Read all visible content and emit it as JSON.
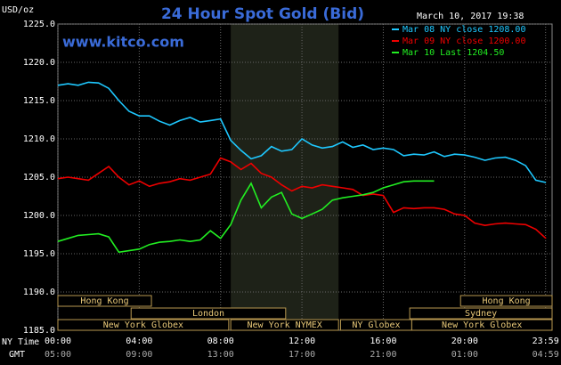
{
  "chart_data": {
    "type": "line",
    "title": "24 Hour Spot Gold (Bid)",
    "site": "www.kitco.com",
    "timestamp": "March 10, 2017 19:38",
    "y_label": "USD/oz",
    "x_row_label": "NY Time",
    "x2_row_label": "GMT",
    "x": [
      0,
      0.5,
      1,
      1.5,
      2,
      2.5,
      3,
      3.5,
      4,
      4.5,
      5,
      5.5,
      6,
      6.5,
      7,
      7.5,
      8,
      8.5,
      9,
      9.5,
      10,
      10.5,
      11,
      11.5,
      12,
      12.5,
      13,
      13.5,
      14,
      14.5,
      15,
      15.5,
      16,
      16.5,
      17,
      17.5,
      18,
      18.5,
      19,
      19.5,
      20,
      20.5,
      21,
      21.5,
      22,
      22.5,
      23,
      23.5,
      24
    ],
    "series": [
      {
        "name": "Mar 08 NY close 1208.00",
        "color": "#1ec8ff",
        "values": [
          1217.0,
          1217.2,
          1217.0,
          1217.4,
          1217.3,
          1216.6,
          1215.0,
          1213.6,
          1213.0,
          1213.0,
          1212.3,
          1211.8,
          1212.4,
          1212.8,
          1212.2,
          1212.4,
          1212.6,
          1209.8,
          1208.5,
          1207.4,
          1207.8,
          1209.0,
          1208.4,
          1208.6,
          1210.0,
          1209.2,
          1208.8,
          1209.0,
          1209.6,
          1208.9,
          1209.2,
          1208.6,
          1208.8,
          1208.6,
          1207.8,
          1208.0,
          1207.9,
          1208.3,
          1207.7,
          1208.0,
          1207.9,
          1207.6,
          1207.2,
          1207.5,
          1207.6,
          1207.2,
          1206.5,
          1204.6,
          1204.3
        ]
      },
      {
        "name": "Mar 09 NY close 1200.00",
        "color": "#ee0000",
        "values": [
          1204.8,
          1205.0,
          1204.8,
          1204.6,
          1205.5,
          1206.4,
          1205.0,
          1204.0,
          1204.5,
          1203.8,
          1204.2,
          1204.4,
          1204.8,
          1204.6,
          1205.0,
          1205.4,
          1207.5,
          1207.0,
          1206.0,
          1206.8,
          1205.5,
          1205.0,
          1204.0,
          1203.2,
          1203.8,
          1203.6,
          1204.0,
          1203.8,
          1203.6,
          1203.4,
          1202.6,
          1202.8,
          1202.6,
          1200.4,
          1201.0,
          1200.9,
          1201.0,
          1201.0,
          1200.8,
          1200.2,
          1200.0,
          1199.0,
          1198.7,
          1198.9,
          1199.0,
          1198.9,
          1198.8,
          1198.2,
          1197.0
        ]
      },
      {
        "name": "Mar 10 Last 1204.50",
        "color": "#22ee22",
        "values": [
          1196.6,
          1197.0,
          1197.4,
          1197.5,
          1197.6,
          1197.2,
          1195.2,
          1195.4,
          1195.6,
          1196.2,
          1196.5,
          1196.6,
          1196.8,
          1196.6,
          1196.8,
          1198.0,
          1197.0,
          1198.8,
          1202.0,
          1204.2,
          1201.0,
          1202.4,
          1203.0,
          1200.2,
          1199.6,
          1200.2,
          1200.8,
          1202.0,
          1202.3,
          1202.5,
          1202.7,
          1203.0,
          1203.6,
          1204.0,
          1204.4,
          1204.5,
          1204.5,
          1204.5,
          null,
          null,
          null,
          null,
          null,
          null,
          null,
          null,
          null,
          null,
          null
        ]
      }
    ],
    "xlim": [
      0,
      24.3
    ],
    "xticks": [
      {
        "value": 0,
        "label": "00:00"
      },
      {
        "value": 4,
        "label": "04:00"
      },
      {
        "value": 8,
        "label": "08:00"
      },
      {
        "value": 12,
        "label": "12:00"
      },
      {
        "value": 16,
        "label": "16:00"
      },
      {
        "value": 20,
        "label": "20:00"
      },
      {
        "value": 23.98,
        "label": "23:59"
      }
    ],
    "x2ticks": [
      "05:00",
      "09:00",
      "13:00",
      "17:00",
      "21:00",
      "01:00",
      "04:59"
    ],
    "ylim": [
      1185,
      1225
    ],
    "yticks": [
      {
        "value": 1185,
        "label": "1185.0"
      },
      {
        "value": 1190,
        "label": "1190.0"
      },
      {
        "value": 1195,
        "label": "1195.0"
      },
      {
        "value": 1200,
        "label": "1200.0"
      },
      {
        "value": 1205,
        "label": "1205.0"
      },
      {
        "value": 1210,
        "label": "1210.0"
      },
      {
        "value": 1215,
        "label": "1215.0"
      },
      {
        "value": 1220,
        "label": "1220.0"
      },
      {
        "value": 1225,
        "label": "1225.0"
      }
    ],
    "grid": true,
    "session_rows": [
      [
        {
          "name": "Hong Kong",
          "start": 0,
          "end": 4.6
        },
        {
          "name": "Hong Kong",
          "start": 19.8,
          "end": 24.3
        }
      ],
      [
        {
          "name": "London",
          "start": 3.6,
          "end": 11.2
        },
        {
          "name": "Sydney",
          "start": 17.3,
          "end": 24.3
        }
      ],
      [
        {
          "name": "New York Globex",
          "start": 0,
          "end": 8.4
        },
        {
          "name": "New York NYMEX",
          "start": 8.5,
          "end": 13.8,
          "shade": true
        },
        {
          "name": "NY Globex",
          "start": 13.9,
          "end": 17.4
        },
        {
          "name": "New York Globex",
          "start": 17.4,
          "end": 24.3
        }
      ]
    ]
  }
}
